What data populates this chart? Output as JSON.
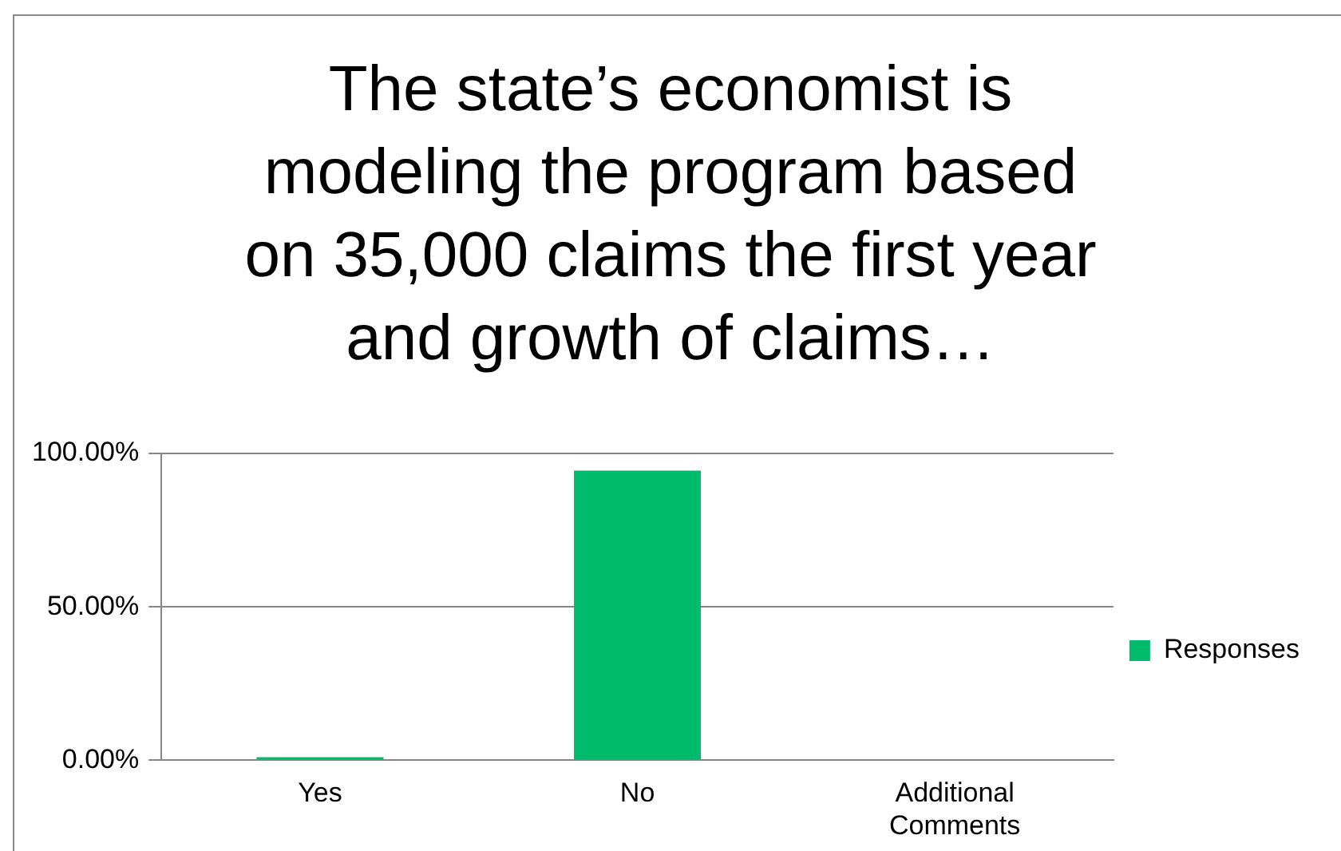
{
  "chart_data": {
    "type": "bar",
    "title": "The state’s economist is modeling the program based on 35,000 claims the first year and growth of claims…",
    "categories": [
      "Yes",
      "No",
      "Additional Comments"
    ],
    "series": [
      {
        "name": "Responses",
        "color": "#00bb6c",
        "values": [
          1,
          94.4,
          0
        ]
      }
    ],
    "ylim": [
      0,
      100
    ],
    "yticks": [
      {
        "value": 0,
        "label": "0.00%"
      },
      {
        "value": 50,
        "label": "50.00%"
      },
      {
        "value": 100,
        "label": "100.00%"
      }
    ],
    "grid": "y",
    "legend": "right"
  }
}
